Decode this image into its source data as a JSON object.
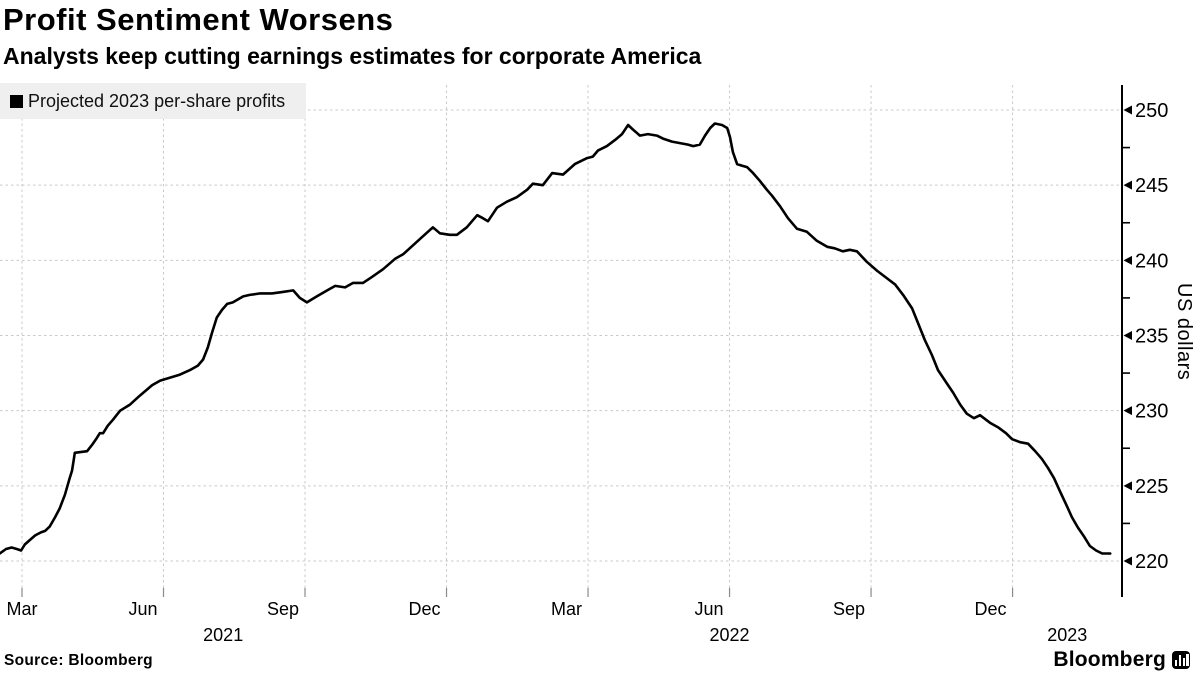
{
  "header": {
    "title": "Profit Sentiment Worsens",
    "subtitle": "Analysts keep cutting earnings estimates for corporate America"
  },
  "legend": {
    "label": "Projected 2023 per-share profits"
  },
  "footer": {
    "source": "Source: Bloomberg",
    "brand": "Bloomberg"
  },
  "chart_data": {
    "type": "line",
    "title": "Profit Sentiment Worsens",
    "subtitle": "Analysts keep cutting earnings estimates for corporate America",
    "legend_entries": [
      "Projected 2023 per-share profits"
    ],
    "legend_position": "top-left",
    "grid": "dashed",
    "ylabel": "US dollars",
    "ylim": [
      217.6,
      251.7
    ],
    "y_major_ticks": [
      220,
      225,
      230,
      235,
      240,
      245,
      250
    ],
    "y_minor_ticks": [
      222.5,
      227.5,
      232.5,
      237.5,
      242.5,
      247.5
    ],
    "x_unit": "months since Jan 1 2021 (3 = Apr 1 2021)",
    "x_gridlines": [
      3,
      6,
      9,
      12,
      15,
      18,
      21,
      24
    ],
    "x_month_labels": [
      {
        "label": "Mar",
        "grid": 3
      },
      {
        "label": "Jun",
        "grid": 6
      },
      {
        "label": "Sep",
        "grid": 9
      },
      {
        "label": "Dec",
        "grid": 12
      },
      {
        "label": "Mar",
        "grid": 15
      },
      {
        "label": "Jun",
        "grid": 18
      },
      {
        "label": "Sep",
        "grid": 21
      },
      {
        "label": "Dec",
        "grid": 24
      }
    ],
    "x_year_labels": [
      {
        "label": "2021",
        "start_m": 2.53,
        "end_m": 12.0
      },
      {
        "label": "2022",
        "start_m": 12.0,
        "end_m": 24.0
      },
      {
        "label": "2023",
        "start_m": 24.0,
        "end_m": 26.32
      }
    ],
    "series": [
      {
        "name": "Projected 2023 per-share profits",
        "color": "#000000",
        "points": [
          [
            2.53,
            220.5
          ],
          [
            2.66,
            220.8
          ],
          [
            2.78,
            220.9
          ],
          [
            2.89,
            220.8
          ],
          [
            2.98,
            220.7
          ],
          [
            3.06,
            221.1
          ],
          [
            3.17,
            221.4
          ],
          [
            3.28,
            221.7
          ],
          [
            3.4,
            221.9
          ],
          [
            3.49,
            222.0
          ],
          [
            3.59,
            222.3
          ],
          [
            3.7,
            222.9
          ],
          [
            3.8,
            223.5
          ],
          [
            3.91,
            224.4
          ],
          [
            4.0,
            225.4
          ],
          [
            4.06,
            226.0
          ],
          [
            4.1,
            226.8
          ],
          [
            4.12,
            227.2
          ],
          [
            4.38,
            227.3
          ],
          [
            4.48,
            227.7
          ],
          [
            4.59,
            228.2
          ],
          [
            4.65,
            228.5
          ],
          [
            4.72,
            228.5
          ],
          [
            4.82,
            229.0
          ],
          [
            4.93,
            229.4
          ],
          [
            5.08,
            230.0
          ],
          [
            5.29,
            230.4
          ],
          [
            5.5,
            231.0
          ],
          [
            5.76,
            231.7
          ],
          [
            5.93,
            232.0
          ],
          [
            6.14,
            232.2
          ],
          [
            6.35,
            232.4
          ],
          [
            6.56,
            232.7
          ],
          [
            6.73,
            233.0
          ],
          [
            6.84,
            233.4
          ],
          [
            6.94,
            234.2
          ],
          [
            7.03,
            235.2
          ],
          [
            7.13,
            236.2
          ],
          [
            7.24,
            236.7
          ],
          [
            7.35,
            237.1
          ],
          [
            7.47,
            237.2
          ],
          [
            7.69,
            237.6
          ],
          [
            7.83,
            237.7
          ],
          [
            8.05,
            237.8
          ],
          [
            8.3,
            237.8
          ],
          [
            8.53,
            237.9
          ],
          [
            8.75,
            238.0
          ],
          [
            8.89,
            237.5
          ],
          [
            9.04,
            237.2
          ],
          [
            9.25,
            237.6
          ],
          [
            9.47,
            238.0
          ],
          [
            9.64,
            238.3
          ],
          [
            9.85,
            238.2
          ],
          [
            10.02,
            238.5
          ],
          [
            10.23,
            238.5
          ],
          [
            10.42,
            238.9
          ],
          [
            10.65,
            239.4
          ],
          [
            10.8,
            239.8
          ],
          [
            10.91,
            240.1
          ],
          [
            11.08,
            240.4
          ],
          [
            11.29,
            241.0
          ],
          [
            11.5,
            241.6
          ],
          [
            11.71,
            242.2
          ],
          [
            11.86,
            241.8
          ],
          [
            12.07,
            241.7
          ],
          [
            12.22,
            241.7
          ],
          [
            12.43,
            242.2
          ],
          [
            12.65,
            243.0
          ],
          [
            12.77,
            242.8
          ],
          [
            12.88,
            242.6
          ],
          [
            13.07,
            243.5
          ],
          [
            13.28,
            243.9
          ],
          [
            13.49,
            244.2
          ],
          [
            13.71,
            244.7
          ],
          [
            13.83,
            245.1
          ],
          [
            14.04,
            245.0
          ],
          [
            14.24,
            245.8
          ],
          [
            14.47,
            245.7
          ],
          [
            14.72,
            246.4
          ],
          [
            14.98,
            246.8
          ],
          [
            15.1,
            246.9
          ],
          [
            15.21,
            247.3
          ],
          [
            15.4,
            247.6
          ],
          [
            15.57,
            248.0
          ],
          [
            15.72,
            248.4
          ],
          [
            15.85,
            249.0
          ],
          [
            15.95,
            248.7
          ],
          [
            16.1,
            248.3
          ],
          [
            16.27,
            248.4
          ],
          [
            16.46,
            248.3
          ],
          [
            16.59,
            248.1
          ],
          [
            16.78,
            247.9
          ],
          [
            16.95,
            247.8
          ],
          [
            17.12,
            247.7
          ],
          [
            17.23,
            247.6
          ],
          [
            17.37,
            247.7
          ],
          [
            17.48,
            248.3
          ],
          [
            17.59,
            248.8
          ],
          [
            17.69,
            249.1
          ],
          [
            17.84,
            249.0
          ],
          [
            17.95,
            248.8
          ],
          [
            18.01,
            248.2
          ],
          [
            18.07,
            247.2
          ],
          [
            18.16,
            246.4
          ],
          [
            18.26,
            246.3
          ],
          [
            18.37,
            246.2
          ],
          [
            18.5,
            245.8
          ],
          [
            18.64,
            245.3
          ],
          [
            18.79,
            244.7
          ],
          [
            18.9,
            244.3
          ],
          [
            19.07,
            243.6
          ],
          [
            19.24,
            242.8
          ],
          [
            19.43,
            242.1
          ],
          [
            19.64,
            241.9
          ],
          [
            19.85,
            241.3
          ],
          [
            20.07,
            240.9
          ],
          [
            20.23,
            240.8
          ],
          [
            20.4,
            240.6
          ],
          [
            20.55,
            240.7
          ],
          [
            20.7,
            240.6
          ],
          [
            20.91,
            239.9
          ],
          [
            21.13,
            239.3
          ],
          [
            21.34,
            238.8
          ],
          [
            21.51,
            238.4
          ],
          [
            21.68,
            237.7
          ],
          [
            21.87,
            236.8
          ],
          [
            22.0,
            235.8
          ],
          [
            22.14,
            234.7
          ],
          [
            22.29,
            233.7
          ],
          [
            22.42,
            232.7
          ],
          [
            22.61,
            231.8
          ],
          [
            22.74,
            231.2
          ],
          [
            22.89,
            230.4
          ],
          [
            23.03,
            229.8
          ],
          [
            23.18,
            229.5
          ],
          [
            23.31,
            229.7
          ],
          [
            23.52,
            229.2
          ],
          [
            23.69,
            228.9
          ],
          [
            23.86,
            228.5
          ],
          [
            23.99,
            228.1
          ],
          [
            24.16,
            227.9
          ],
          [
            24.33,
            227.8
          ],
          [
            24.48,
            227.3
          ],
          [
            24.62,
            226.8
          ],
          [
            24.75,
            226.2
          ],
          [
            24.88,
            225.5
          ],
          [
            25.01,
            224.6
          ],
          [
            25.13,
            223.8
          ],
          [
            25.26,
            222.9
          ],
          [
            25.39,
            222.2
          ],
          [
            25.52,
            221.6
          ],
          [
            25.64,
            221.0
          ],
          [
            25.77,
            220.7
          ],
          [
            25.9,
            220.5
          ],
          [
            26.07,
            220.5
          ]
        ]
      }
    ]
  }
}
